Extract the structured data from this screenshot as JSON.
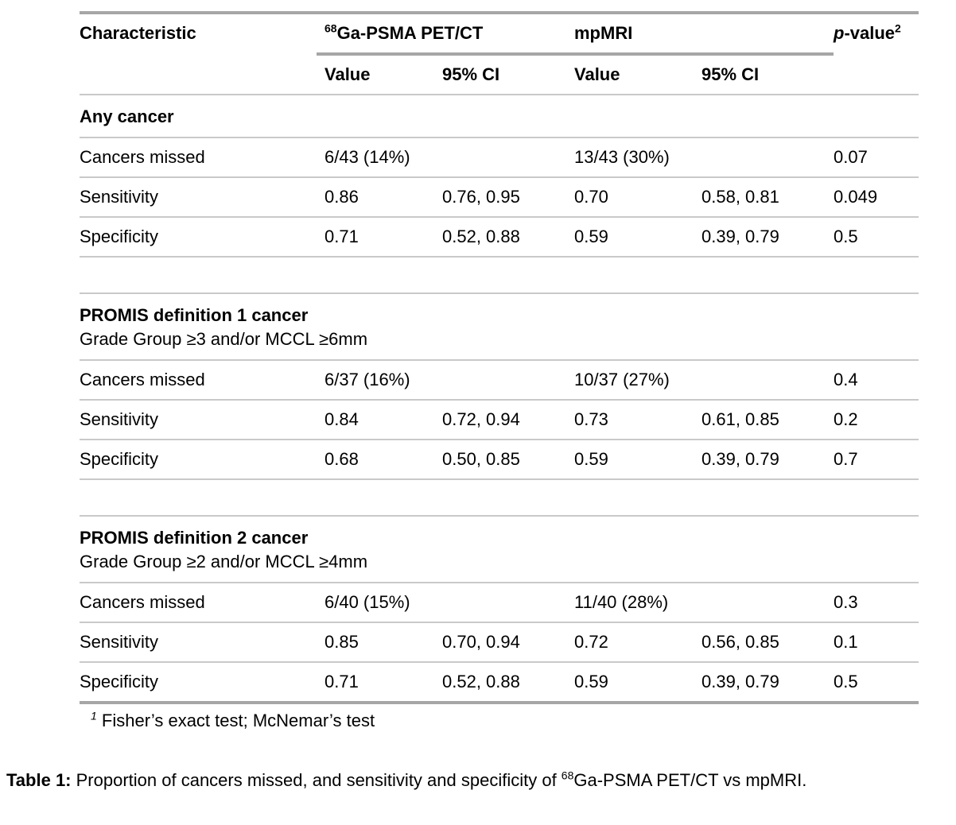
{
  "table": {
    "header": {
      "characteristic": "Characteristic",
      "group_pet": {
        "sup": "68",
        "label": "Ga-PSMA PET/CT"
      },
      "group_mri": "mpMRI",
      "pvalue": {
        "p": "p",
        "rest": "-value",
        "sup": "2"
      },
      "sub": {
        "value1": "Value",
        "ci1": "95% CI",
        "value2": "Value",
        "ci2": "95% CI"
      }
    },
    "sections": [
      {
        "title": "Any cancer",
        "subtitle": "",
        "rows": [
          {
            "label": "Cancers missed",
            "pet_value": "6/43 (14%)",
            "pet_ci": "",
            "mri_value": "13/43 (30%)",
            "mri_ci": "",
            "p": "0.07"
          },
          {
            "label": "Sensitivity",
            "pet_value": "0.86",
            "pet_ci": "0.76, 0.95",
            "mri_value": "0.70",
            "mri_ci": "0.58, 0.81",
            "p": "0.049"
          },
          {
            "label": "Specificity",
            "pet_value": "0.71",
            "pet_ci": "0.52, 0.88",
            "mri_value": "0.59",
            "mri_ci": "0.39, 0.79",
            "p": "0.5"
          }
        ]
      },
      {
        "title": "PROMIS definition 1 cancer",
        "subtitle": "Grade Group ≥3 and/or MCCL ≥6mm",
        "rows": [
          {
            "label": "Cancers missed",
            "pet_value": "6/37 (16%)",
            "pet_ci": "",
            "mri_value": "10/37 (27%)",
            "mri_ci": "",
            "p": "0.4"
          },
          {
            "label": "Sensitivity",
            "pet_value": "0.84",
            "pet_ci": "0.72, 0.94",
            "mri_value": "0.73",
            "mri_ci": "0.61, 0.85",
            "p": "0.2"
          },
          {
            "label": "Specificity",
            "pet_value": "0.68",
            "pet_ci": "0.50, 0.85",
            "mri_value": "0.59",
            "mri_ci": "0.39, 0.79",
            "p": "0.7"
          }
        ]
      },
      {
        "title": "PROMIS definition 2 cancer",
        "subtitle": "Grade Group ≥2 and/or MCCL ≥4mm",
        "rows": [
          {
            "label": "Cancers missed",
            "pet_value": "6/40 (15%)",
            "pet_ci": "",
            "mri_value": "11/40 (28%)",
            "mri_ci": "",
            "p": "0.3"
          },
          {
            "label": "Sensitivity",
            "pet_value": "0.85",
            "pet_ci": "0.70, 0.94",
            "mri_value": "0.72",
            "mri_ci": "0.56, 0.85",
            "p": "0.1"
          },
          {
            "label": "Specificity",
            "pet_value": "0.71",
            "pet_ci": "0.52, 0.88",
            "mri_value": "0.59",
            "mri_ci": "0.39, 0.79",
            "p": "0.5"
          }
        ]
      }
    ],
    "footnote": {
      "marker": "1",
      "text": "Fisher’s exact test; McNemar’s test"
    }
  },
  "caption": {
    "label": "Table 1:",
    "before_sup": " Proportion of cancers missed, and sensitivity and specificity of ",
    "sup": "68",
    "after_sup": "Ga-PSMA PET/CT vs mpMRI."
  },
  "colors": {
    "rule_thick": "#a6a6a6",
    "rule_thin": "#c9c9c9"
  }
}
